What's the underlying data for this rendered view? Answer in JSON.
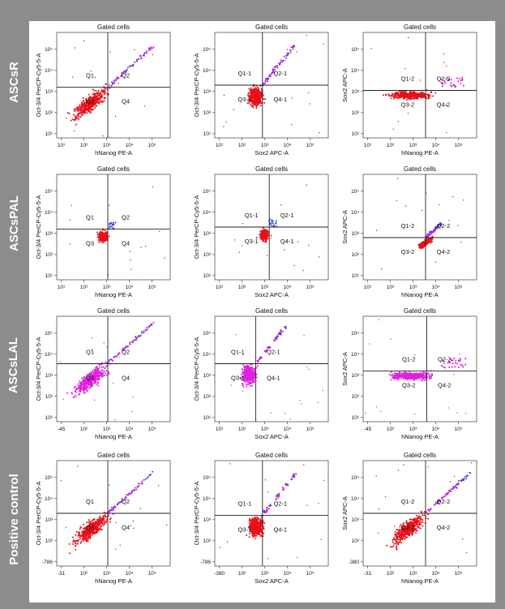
{
  "rows": [
    {
      "label": "ASCsR",
      "plots": [
        {
          "title": "Gated cells",
          "xlabel": "hNanog PE-A",
          "ylabel": "Oct-3/4 PerCP-Cy5-5-A",
          "q": [
            "Q1",
            "Q2",
            "Q3",
            "Q4"
          ],
          "xticks": [
            "10¹",
            "10²",
            "10³",
            "10⁴",
            "10⁵"
          ],
          "yticks": [
            "10¹",
            "10²",
            "10³",
            "10⁴",
            "10⁵"
          ],
          "pattern": "diag",
          "color": "#e8101a"
        },
        {
          "title": "Gated cells",
          "xlabel": "Sox2 APC-A",
          "ylabel": "Oct-3/4 PerCP-Cy5-5-A",
          "q": [
            "Q1-1",
            "Q2-1",
            "Q3-1",
            "Q4-1"
          ],
          "xticks": [
            "10¹",
            "10²",
            "10³",
            "10⁴",
            "10⁵"
          ],
          "yticks": [
            "10¹",
            "10²",
            "10³",
            "10⁴",
            "10⁵"
          ],
          "pattern": "blob",
          "color": "#e8101a"
        },
        {
          "title": "Gated cells",
          "xlabel": "hNanog PE-A",
          "ylabel": "Sox2 APC-A",
          "q": [
            "Q1-2",
            "Q2-2",
            "Q3-2",
            "Q4-2"
          ],
          "xticks": [
            "10¹",
            "10²",
            "10³",
            "10⁴",
            "10⁵"
          ],
          "yticks": [
            "10¹",
            "10²",
            "10³",
            "10⁴",
            "10⁵"
          ],
          "pattern": "flat",
          "color": "#e8101a"
        }
      ]
    },
    {
      "label": "ASCsPAL",
      "plots": [
        {
          "title": "Gated cells",
          "xlabel": "hNanog PE-A",
          "ylabel": "Oct-3/4 PerCP-Cy5-5-A",
          "q": [
            "Q1",
            "Q2",
            "Q3",
            "Q4"
          ],
          "xticks": [
            "10¹",
            "10²",
            "10³",
            "10⁴",
            "10⁵"
          ],
          "yticks": [
            "10¹",
            "10²",
            "10³",
            "10⁴",
            "10⁵"
          ],
          "pattern": "small",
          "color": "#e8101a"
        },
        {
          "title": "Gated cells",
          "xlabel": "Sox2 APC-A",
          "ylabel": "Oct-3/4 PerCP-Cy5-5-A",
          "q": [
            "Q1-1",
            "Q2-1",
            "Q3-1",
            "Q4-1"
          ],
          "xticks": [
            "10¹",
            "10²",
            "10³",
            "10⁴",
            "10⁵"
          ],
          "yticks": [
            "10¹",
            "10²",
            "10³",
            "10⁴",
            "10⁵"
          ],
          "pattern": "small",
          "color": "#e8101a"
        },
        {
          "title": "Gated cells",
          "xlabel": "hNanog PE-A",
          "ylabel": "Sox2 APC-A",
          "q": [
            "Q1-2",
            "Q2-2",
            "Q3-2",
            "Q4-2"
          ],
          "xticks": [
            "10¹",
            "10²",
            "10³",
            "10⁴",
            "10⁵"
          ],
          "yticks": [
            "10¹",
            "10²",
            "10³",
            "10⁴",
            "10⁵"
          ],
          "pattern": "smalldiag",
          "color": "#e8101a"
        }
      ]
    },
    {
      "label": "ASCsLAL",
      "plots": [
        {
          "title": "Gated cells",
          "xlabel": "hNanog PE-A",
          "ylabel": "Oct-3/4 PerCP-Cy5-5-A",
          "q": [
            "Q1",
            "Q2",
            "Q3",
            "Q4"
          ],
          "xticks": [
            "-45",
            "10²",
            "10³",
            "10⁴",
            "10⁵"
          ],
          "yticks": [
            "10¹",
            "10²",
            "10³",
            "10⁴",
            "10⁵"
          ],
          "pattern": "diag",
          "color": "#e020e0"
        },
        {
          "title": "Gated cells",
          "xlabel": "Sox2 APC-A",
          "ylabel": "Oct-3/4 PerCP-Cy5-5-A",
          "q": [
            "Q1-1",
            "Q2-1",
            "Q3-1",
            "Q4-1"
          ],
          "xticks": [
            "10¹",
            "10²",
            "10³",
            "10⁴",
            "10⁵"
          ],
          "yticks": [
            "10¹",
            "10²",
            "10³",
            "10⁴",
            "10⁵"
          ],
          "pattern": "blob",
          "color": "#e020e0"
        },
        {
          "title": "Gated cells",
          "xlabel": "hNanog PE-A",
          "ylabel": "Sox2 APC-A",
          "q": [
            "Q1-2",
            "Q2-2",
            "Q3-2",
            "Q4-2"
          ],
          "xticks": [
            "-45",
            "10²",
            "10³",
            "10⁴",
            "10⁵"
          ],
          "yticks": [
            "10¹",
            "10²",
            "10³",
            "10⁴",
            "10⁵"
          ],
          "pattern": "flat",
          "color": "#e020e0"
        }
      ]
    },
    {
      "label": "Positive control",
      "plots": [
        {
          "title": "Gated cells",
          "xlabel": "hNanog PE-A",
          "ylabel": "Oct-3/4 PerCP-Cy5-5-A",
          "q": [
            "Q1",
            "Q2",
            "Q3",
            "Q4"
          ],
          "xticks": [
            "-31",
            "10²",
            "10³",
            "10⁴",
            "10⁵"
          ],
          "yticks": [
            "-786",
            "10²",
            "10³",
            "10⁴",
            "10⁵"
          ],
          "pattern": "diag",
          "color": "#e8101a"
        },
        {
          "title": "Gated cells",
          "xlabel": "Sox2 APC-A",
          "ylabel": "Oct-3/4 PerCP-Cy5-5-A",
          "q": [
            "Q1-1",
            "Q2-1",
            "Q3-1",
            "Q4-1"
          ],
          "xticks": [
            "-380",
            "10²",
            "10³",
            "10⁴",
            "10⁵"
          ],
          "yticks": [
            "-786",
            "10²",
            "10³",
            "10⁴",
            "10⁵"
          ],
          "pattern": "blob",
          "color": "#e8101a"
        },
        {
          "title": "Gated cells",
          "xlabel": "hNanog PE-A",
          "ylabel": "Sox2 APC-A",
          "q": [
            "Q1-2",
            "Q2-2",
            "Q3-2",
            "Q4-2"
          ],
          "xticks": [
            "-31",
            "10²",
            "10³",
            "10⁴",
            "10⁵"
          ],
          "yticks": [
            "-380",
            "10²",
            "10³",
            "10⁴",
            "10⁵"
          ],
          "pattern": "diag",
          "color": "#e8101a"
        }
      ]
    }
  ],
  "chart_data": {
    "type": "scatter",
    "panels": [
      {
        "row": "ASCsR",
        "x": "hNanog PE-A",
        "y": "Oct-3/4 PerCP-Cy5-5-A",
        "quadrants": [
          "Q1",
          "Q2",
          "Q3",
          "Q4"
        ]
      },
      {
        "row": "ASCsR",
        "x": "Sox2 APC-A",
        "y": "Oct-3/4 PerCP-Cy5-5-A",
        "quadrants": [
          "Q1-1",
          "Q2-1",
          "Q3-1",
          "Q4-1"
        ]
      },
      {
        "row": "ASCsR",
        "x": "hNanog PE-A",
        "y": "Sox2 APC-A",
        "quadrants": [
          "Q1-2",
          "Q2-2",
          "Q3-2",
          "Q4-2"
        ]
      },
      {
        "row": "ASCsPAL",
        "x": "hNanog PE-A",
        "y": "Oct-3/4 PerCP-Cy5-5-A",
        "quadrants": [
          "Q1",
          "Q2",
          "Q3",
          "Q4"
        ]
      },
      {
        "row": "ASCsPAL",
        "x": "Sox2 APC-A",
        "y": "Oct-3/4 PerCP-Cy5-5-A",
        "quadrants": [
          "Q1-1",
          "Q2-1",
          "Q3-1",
          "Q4-1"
        ]
      },
      {
        "row": "ASCsPAL",
        "x": "hNanog PE-A",
        "y": "Sox2 APC-A",
        "quadrants": [
          "Q1-2",
          "Q2-2",
          "Q3-2",
          "Q4-2"
        ]
      },
      {
        "row": "ASCsLAL",
        "x": "hNanog PE-A",
        "y": "Oct-3/4 PerCP-Cy5-5-A",
        "quadrants": [
          "Q1",
          "Q2",
          "Q3",
          "Q4"
        ]
      },
      {
        "row": "ASCsLAL",
        "x": "Sox2 APC-A",
        "y": "Oct-3/4 PerCP-Cy5-5-A",
        "quadrants": [
          "Q1-1",
          "Q2-1",
          "Q3-1",
          "Q4-1"
        ]
      },
      {
        "row": "ASCsLAL",
        "x": "hNanog PE-A",
        "y": "Sox2 APC-A",
        "quadrants": [
          "Q1-2",
          "Q2-2",
          "Q3-2",
          "Q4-2"
        ]
      },
      {
        "row": "Positive control",
        "x": "hNanog PE-A",
        "y": "Oct-3/4 PerCP-Cy5-5-A",
        "quadrants": [
          "Q1",
          "Q2",
          "Q3",
          "Q4"
        ]
      },
      {
        "row": "Positive control",
        "x": "Sox2 APC-A",
        "y": "Oct-3/4 PerCP-Cy5-5-A",
        "quadrants": [
          "Q1-1",
          "Q2-1",
          "Q3-1",
          "Q4-1"
        ]
      },
      {
        "row": "Positive control",
        "x": "hNanog PE-A",
        "y": "Sox2 APC-A",
        "quadrants": [
          "Q1-2",
          "Q2-2",
          "Q3-2",
          "Q4-2"
        ]
      }
    ]
  }
}
